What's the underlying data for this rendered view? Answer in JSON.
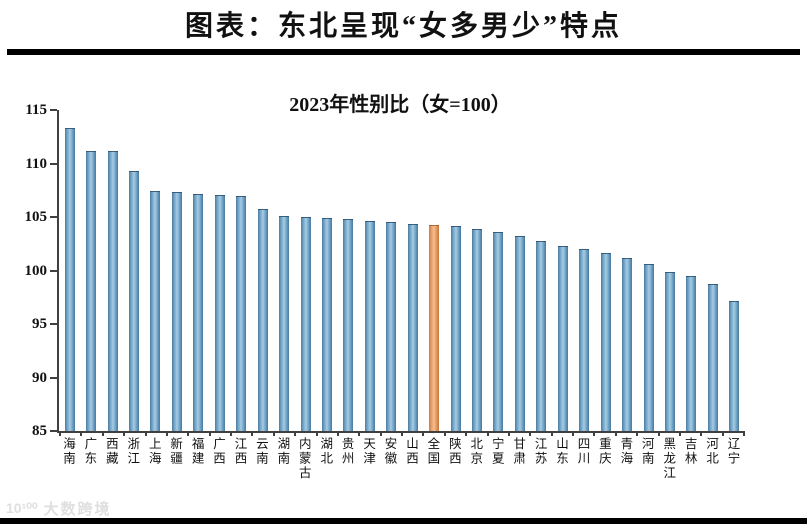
{
  "page": {
    "title": "图表：东北呈现“女多男少”特点"
  },
  "watermark": {
    "logo": "10¹⁰⁰",
    "brand": "大数跨境",
    "color": "#dfdfdf"
  },
  "rules": {
    "color": "#000000"
  },
  "chart_data": {
    "type": "bar",
    "title": "2023年性别比（女=100）",
    "categories": [
      "海南",
      "广东",
      "西藏",
      "浙江",
      "上海",
      "新疆",
      "福建",
      "广西",
      "江西",
      "云南",
      "湖南",
      "内蒙古",
      "湖北",
      "贵州",
      "天津",
      "安徽",
      "山西",
      "全国",
      "陕西",
      "北京",
      "宁夏",
      "甘肃",
      "江苏",
      "山东",
      "四川",
      "重庆",
      "青海",
      "河南",
      "黑龙江",
      "吉林",
      "河北",
      "辽宁"
    ],
    "values": [
      113.2,
      111.1,
      111.1,
      109.2,
      107.3,
      107.2,
      107.1,
      107.0,
      106.9,
      105.7,
      105.0,
      104.9,
      104.8,
      104.7,
      104.5,
      104.4,
      104.3,
      104.2,
      104.1,
      103.8,
      103.5,
      103.1,
      102.7,
      102.2,
      101.9,
      101.5,
      101.1,
      100.5,
      99.8,
      99.4,
      98.6,
      97.1
    ],
    "highlight_category": "全国",
    "highlight_index": 17,
    "ylim": [
      85,
      115
    ],
    "yticks": [
      85,
      90,
      95,
      100,
      105,
      110,
      115
    ],
    "grid": false,
    "legend": null,
    "axis_color": "#404040",
    "bar_gradient": [
      "#4e7c9e",
      "#7fb0d2",
      "#a4cce4",
      "#6fa3c6",
      "#4a779a"
    ],
    "highlight_gradient": [
      "#cd7b43",
      "#eba670",
      "#f5bf8e",
      "#e0985c",
      "#c67440"
    ]
  }
}
